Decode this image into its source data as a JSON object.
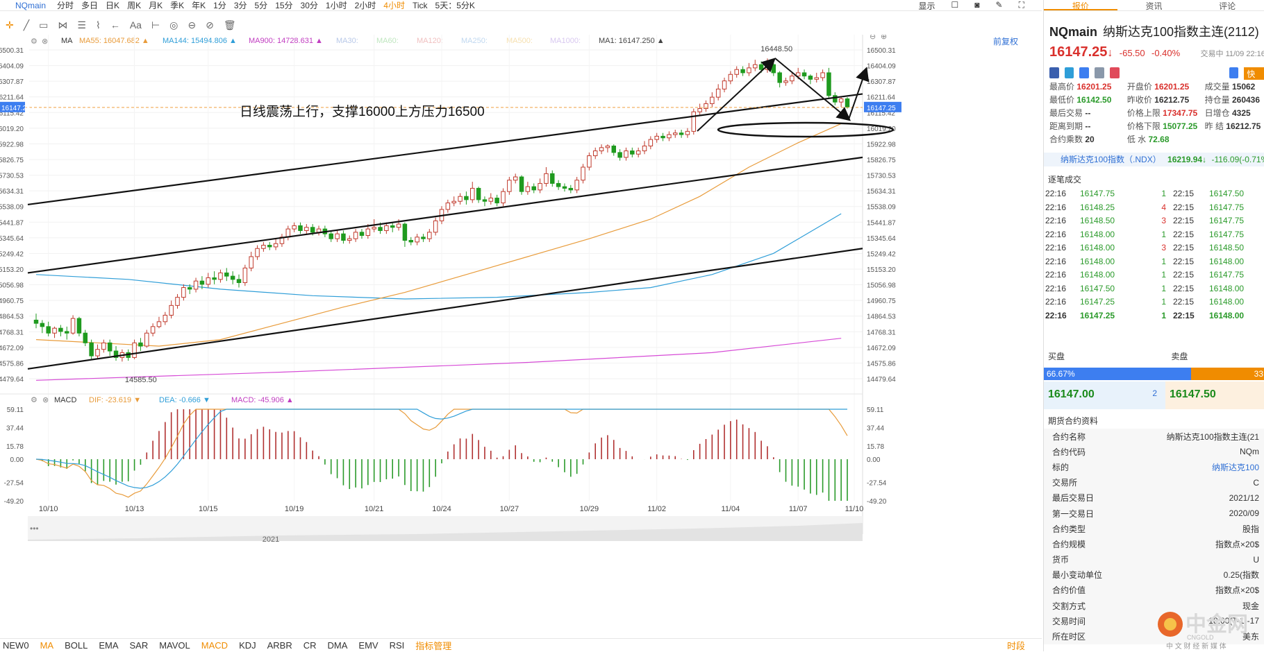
{
  "topbar": {
    "symbol": "NQmain",
    "periods": [
      "分时",
      "多日",
      "日K",
      "周K",
      "月K",
      "季K",
      "年K",
      "1分",
      "3分",
      "5分",
      "15分",
      "30分",
      "1小时",
      "2小时",
      "4小时",
      "Tick",
      "5天：5分K"
    ],
    "active_period": "4小时",
    "display_label": "显示"
  },
  "ma_legend": {
    "ma_label": "MA",
    "items": [
      {
        "text": "MA55: 16047.682 ▲",
        "color": "#e89b3a"
      },
      {
        "text": "MA144: 15494.806 ▲",
        "color": "#2f9ed8"
      },
      {
        "text": "MA900: 14728.631 ▲",
        "color": "#c03cc0"
      },
      {
        "text": "MA30:",
        "color": "#b8c8e8"
      },
      {
        "text": "MA60:",
        "color": "#bfe6bf"
      },
      {
        "text": "MA120:",
        "color": "#f0c0c0"
      },
      {
        "text": "MA250:",
        "color": "#c0d8f0"
      },
      {
        "text": "MA500:",
        "color": "#f6e0b0"
      },
      {
        "text": "MA1000:",
        "color": "#d8c8f0"
      },
      {
        "text": "MA1: 16147.250 ▲",
        "color": "#444444"
      }
    ],
    "fq": "前复权"
  },
  "macd_legend": {
    "label": "MACD",
    "dif": "DIF: -23.619 ▼",
    "dea": "DEA: -0.666 ▼",
    "macd": "MACD: -45.906 ▲"
  },
  "annotation": "日线震荡上行，支撑16000上方压力16500",
  "chart_data": {
    "type": "candlestick",
    "ylim": [
      14479.64,
      16500.31
    ],
    "y_ticks": [
      16500.31,
      16404.09,
      16307.87,
      16211.64,
      16115.42,
      16019.2,
      15922.98,
      15826.75,
      15730.53,
      15634.31,
      15538.09,
      15441.87,
      15345.64,
      15249.42,
      15153.2,
      15056.98,
      14960.75,
      14864.53,
      14768.31,
      14672.09,
      14575.86,
      14479.64
    ],
    "x_labels": [
      "10/10",
      "10/13",
      "10/15",
      "10/19",
      "10/21",
      "10/24",
      "10/27",
      "10/29",
      "11/02",
      "11/04",
      "11/07",
      "11/10"
    ],
    "current_price": "16147.25",
    "high_label": "16448.50",
    "low_label": "14585.50",
    "year_label": "2021",
    "candles": [
      [
        14840,
        14820,
        14880,
        14790
      ],
      [
        14820,
        14800,
        14840,
        14760
      ],
      [
        14800,
        14760,
        14830,
        14740
      ],
      [
        14760,
        14790,
        14800,
        14730
      ],
      [
        14790,
        14770,
        14810,
        14740
      ],
      [
        14770,
        14760,
        14800,
        14720
      ],
      [
        14760,
        14850,
        14870,
        14750
      ],
      [
        14850,
        14760,
        14860,
        14740
      ],
      [
        14760,
        14700,
        14780,
        14680
      ],
      [
        14700,
        14620,
        14720,
        14600
      ],
      [
        14620,
        14660,
        14690,
        14600
      ],
      [
        14660,
        14700,
        14720,
        14640
      ],
      [
        14700,
        14650,
        14720,
        14620
      ],
      [
        14650,
        14610,
        14680,
        14590
      ],
      [
        14610,
        14640,
        14660,
        14585
      ],
      [
        14640,
        14610,
        14660,
        14590
      ],
      [
        14610,
        14700,
        14720,
        14600
      ],
      [
        14700,
        14680,
        14730,
        14650
      ],
      [
        14680,
        14760,
        14780,
        14670
      ],
      [
        14760,
        14800,
        14820,
        14740
      ],
      [
        14800,
        14830,
        14860,
        14790
      ],
      [
        14830,
        14870,
        14890,
        14810
      ],
      [
        14870,
        14930,
        14960,
        14850
      ],
      [
        14930,
        14980,
        15000,
        14910
      ],
      [
        14980,
        15040,
        15060,
        14960
      ],
      [
        15040,
        15030,
        15060,
        15000
      ],
      [
        15030,
        15080,
        15100,
        15010
      ],
      [
        15080,
        15060,
        15110,
        15030
      ],
      [
        15060,
        15100,
        15130,
        15040
      ],
      [
        15100,
        15090,
        15140,
        15060
      ],
      [
        15090,
        15130,
        15150,
        15070
      ],
      [
        15130,
        15110,
        15160,
        15080
      ],
      [
        15110,
        15090,
        15140,
        15060
      ],
      [
        15090,
        15070,
        15120,
        15040
      ],
      [
        15070,
        15160,
        15180,
        15050
      ],
      [
        15160,
        15230,
        15260,
        15140
      ],
      [
        15230,
        15280,
        15300,
        15210
      ],
      [
        15280,
        15300,
        15320,
        15260
      ],
      [
        15300,
        15290,
        15320,
        15270
      ],
      [
        15290,
        15310,
        15340,
        15270
      ],
      [
        15310,
        15350,
        15370,
        15290
      ],
      [
        15350,
        15400,
        15420,
        15330
      ],
      [
        15400,
        15420,
        15440,
        15380
      ],
      [
        15420,
        15390,
        15440,
        15370
      ],
      [
        15390,
        15410,
        15430,
        15370
      ],
      [
        15410,
        15380,
        15430,
        15360
      ],
      [
        15380,
        15400,
        15420,
        15360
      ],
      [
        15400,
        15370,
        15420,
        15350
      ],
      [
        15370,
        15340,
        15390,
        15320
      ],
      [
        15340,
        15370,
        15390,
        15320
      ],
      [
        15370,
        15330,
        15390,
        15310
      ],
      [
        15330,
        15340,
        15360,
        15310
      ],
      [
        15340,
        15380,
        15400,
        15320
      ],
      [
        15380,
        15360,
        15400,
        15340
      ],
      [
        15360,
        15400,
        15430,
        15340
      ],
      [
        15400,
        15410,
        15460,
        15380
      ],
      [
        15410,
        15390,
        15440,
        15370
      ],
      [
        15390,
        15420,
        15440,
        15370
      ],
      [
        15420,
        15410,
        15440,
        15380
      ],
      [
        15410,
        15430,
        15460,
        15390
      ],
      [
        15430,
        15330,
        15440,
        15290
      ],
      [
        15330,
        15320,
        15350,
        15300
      ],
      [
        15320,
        15350,
        15370,
        15300
      ],
      [
        15350,
        15340,
        15370,
        15320
      ],
      [
        15340,
        15380,
        15400,
        15320
      ],
      [
        15380,
        15450,
        15470,
        15360
      ],
      [
        15450,
        15520,
        15540,
        15430
      ],
      [
        15520,
        15560,
        15580,
        15500
      ],
      [
        15560,
        15570,
        15600,
        15540
      ],
      [
        15570,
        15600,
        15620,
        15550
      ],
      [
        15600,
        15580,
        15630,
        15550
      ],
      [
        15580,
        15650,
        15690,
        15560
      ],
      [
        15650,
        15580,
        15660,
        15560
      ],
      [
        15580,
        15570,
        15600,
        15540
      ],
      [
        15570,
        15590,
        15620,
        15550
      ],
      [
        15590,
        15560,
        15610,
        15540
      ],
      [
        15560,
        15630,
        15650,
        15540
      ],
      [
        15630,
        15700,
        15720,
        15610
      ],
      [
        15700,
        15720,
        15740,
        15680
      ],
      [
        15720,
        15630,
        15730,
        15610
      ],
      [
        15630,
        15660,
        15690,
        15610
      ],
      [
        15660,
        15640,
        15680,
        15620
      ],
      [
        15640,
        15680,
        15710,
        15620
      ],
      [
        15680,
        15740,
        15780,
        15660
      ],
      [
        15740,
        15680,
        15760,
        15660
      ],
      [
        15680,
        15660,
        15700,
        15640
      ],
      [
        15660,
        15650,
        15680,
        15630
      ],
      [
        15650,
        15640,
        15670,
        15620
      ],
      [
        15640,
        15700,
        15720,
        15620
      ],
      [
        15700,
        15780,
        15800,
        15680
      ],
      [
        15780,
        15850,
        15870,
        15760
      ],
      [
        15850,
        15880,
        15900,
        15830
      ],
      [
        15880,
        15900,
        15920,
        15860
      ],
      [
        15900,
        15910,
        15920,
        15870
      ],
      [
        15910,
        15870,
        15920,
        15850
      ],
      [
        15870,
        15840,
        15890,
        15820
      ],
      [
        15840,
        15880,
        15900,
        15820
      ],
      [
        15880,
        15860,
        15900,
        15840
      ],
      [
        15860,
        15880,
        15900,
        15840
      ],
      [
        15880,
        15910,
        15940,
        15860
      ],
      [
        15910,
        15950,
        15970,
        15890
      ],
      [
        15950,
        15970,
        15990,
        15930
      ],
      [
        15970,
        15960,
        15990,
        15940
      ],
      [
        15960,
        15980,
        16000,
        15940
      ],
      [
        15980,
        15990,
        16010,
        15960
      ],
      [
        15990,
        15980,
        16010,
        15960
      ],
      [
        15980,
        16000,
        16020,
        15960
      ],
      [
        16000,
        16120,
        16140,
        15980
      ],
      [
        16120,
        16140,
        16170,
        16100
      ],
      [
        16140,
        16170,
        16190,
        16120
      ],
      [
        16170,
        16210,
        16240,
        16150
      ],
      [
        16210,
        16260,
        16290,
        16190
      ],
      [
        16260,
        16310,
        16330,
        16240
      ],
      [
        16310,
        16350,
        16370,
        16290
      ],
      [
        16350,
        16380,
        16400,
        16330
      ],
      [
        16380,
        16360,
        16400,
        16340
      ],
      [
        16360,
        16390,
        16420,
        16340
      ],
      [
        16390,
        16410,
        16440,
        16370
      ],
      [
        16410,
        16380,
        16430,
        16360
      ],
      [
        16380,
        16410,
        16448,
        16360
      ],
      [
        16410,
        16360,
        16420,
        16340
      ],
      [
        16360,
        16300,
        16370,
        16270
      ],
      [
        16300,
        16310,
        16330,
        16280
      ],
      [
        16310,
        16340,
        16360,
        16290
      ],
      [
        16340,
        16360,
        16390,
        16320
      ],
      [
        16360,
        16340,
        16380,
        16320
      ],
      [
        16340,
        16320,
        16350,
        16290
      ],
      [
        16320,
        16330,
        16360,
        16300
      ],
      [
        16330,
        16360,
        16380,
        16310
      ],
      [
        16360,
        16220,
        16390,
        16200
      ],
      [
        16220,
        16180,
        16240,
        16160
      ],
      [
        16180,
        16200,
        16210,
        16150
      ],
      [
        16200,
        16150,
        16210,
        16140
      ]
    ],
    "ma55": [
      [
        0,
        14720
      ],
      [
        10,
        14700
      ],
      [
        20,
        14680
      ],
      [
        30,
        14720
      ],
      [
        40,
        14820
      ],
      [
        50,
        14920
      ],
      [
        60,
        15010
      ],
      [
        70,
        15120
      ],
      [
        80,
        15230
      ],
      [
        90,
        15340
      ],
      [
        100,
        15460
      ],
      [
        108,
        15600
      ],
      [
        116,
        15780
      ],
      [
        124,
        15930
      ],
      [
        131,
        16047
      ]
    ],
    "ma144": [
      [
        0,
        15120
      ],
      [
        15,
        15090
      ],
      [
        30,
        15030
      ],
      [
        45,
        14990
      ],
      [
        60,
        14970
      ],
      [
        75,
        14980
      ],
      [
        90,
        15010
      ],
      [
        100,
        15040
      ],
      [
        110,
        15120
      ],
      [
        120,
        15250
      ],
      [
        131,
        15494
      ]
    ],
    "ma900": [
      [
        0,
        14470
      ],
      [
        40,
        14520
      ],
      [
        80,
        14580
      ],
      [
        110,
        14640
      ],
      [
        131,
        14728
      ]
    ],
    "trendlines": [
      {
        "from": [
          0,
          15550
        ],
        "to": [
          132,
          16230
        ]
      },
      {
        "from": [
          0,
          15130
        ],
        "to": [
          132,
          15840
        ]
      },
      {
        "from": [
          0,
          14540
        ],
        "to": [
          132,
          15280
        ]
      }
    ],
    "macd_axis": {
      "ylim": [
        -49.2,
        59.11
      ],
      "ticks": [
        59.11,
        37.44,
        15.78,
        0.0,
        -27.54,
        -49.2
      ]
    }
  },
  "bottombar": {
    "items": [
      "NEW0",
      "MA",
      "BOLL",
      "EMA",
      "SAR",
      "MAVOL",
      "MACD",
      "KDJ",
      "ARBR",
      "CR",
      "DMA",
      "EMV",
      "RSI",
      "指标管理"
    ],
    "right": "时段"
  },
  "right_panel": {
    "tabs": [
      "报价",
      "资讯",
      "评论"
    ],
    "symbol": "NQmain",
    "name": "纳斯达克100指数主连(2112)",
    "price": "16147.25",
    "arrow": "↓",
    "change": "-65.50",
    "change_pct": "-0.40%",
    "status": "交易中 11/09 22:16",
    "quick": "快捷",
    "quotes": [
      [
        {
          "k": "最高价",
          "v": "16201.25",
          "c": "up"
        },
        {
          "k": "开盘价",
          "v": "16201.25",
          "c": "up"
        },
        {
          "k": "成交量",
          "v": "15062",
          "c": ""
        }
      ],
      [
        {
          "k": "最低价",
          "v": "16142.50",
          "c": "dn"
        },
        {
          "k": "昨收价",
          "v": "16212.75",
          "c": ""
        },
        {
          "k": "持仓量",
          "v": "260436",
          "c": ""
        }
      ],
      [
        {
          "k": "最后交易",
          "v": "--",
          "c": ""
        },
        {
          "k": "价格上限",
          "v": "17347.75",
          "c": "up"
        },
        {
          "k": "日增仓",
          "v": "4325",
          "c": ""
        }
      ],
      [
        {
          "k": "距离到期",
          "v": "--",
          "c": ""
        },
        {
          "k": "价格下限",
          "v": "15077.25",
          "c": "dn"
        },
        {
          "k": "昨 结",
          "v": "16212.75",
          "c": ""
        }
      ],
      [
        {
          "k": "合约乘数",
          "v": "20",
          "c": ""
        },
        {
          "k": "低 水",
          "v": "72.68",
          "c": "dn"
        },
        {
          "k": "",
          "v": "",
          "c": ""
        }
      ]
    ],
    "index_name": "纳斯达克100指数（.NDX）",
    "index_price": "16219.94↓",
    "index_change": "-116.09(-0.71%)",
    "ticks_title": "逐笔成交",
    "ticks": [
      [
        "22:16",
        "16147.75",
        "1",
        "22:15",
        "16147.50"
      ],
      [
        "22:16",
        "16148.25",
        "4",
        "22:15",
        "16147.75"
      ],
      [
        "22:16",
        "16148.50",
        "3",
        "22:15",
        "16147.75"
      ],
      [
        "22:16",
        "16148.00",
        "1",
        "22:15",
        "16147.75"
      ],
      [
        "22:16",
        "16148.00",
        "3",
        "22:15",
        "16148.50"
      ],
      [
        "22:16",
        "16148.00",
        "1",
        "22:15",
        "16148.00"
      ],
      [
        "22:16",
        "16148.00",
        "1",
        "22:15",
        "16147.75"
      ],
      [
        "22:16",
        "16147.50",
        "1",
        "22:15",
        "16148.00"
      ],
      [
        "22:16",
        "16147.25",
        "1",
        "22:15",
        "16148.00"
      ],
      [
        "22:16",
        "16147.25",
        "1",
        "22:15",
        "16148.00"
      ]
    ],
    "buy_label": "买盘",
    "sell_label": "卖盘",
    "buy_pct": "66.67%",
    "sell_pct": "33",
    "bid": "16147.00",
    "bid_size": "2",
    "ask": "16147.50",
    "info_title": "期货合约资料",
    "info": [
      [
        "合约名称",
        "纳斯达克100指数主连(21"
      ],
      [
        "合约代码",
        "NQm"
      ],
      [
        "标的",
        "纳斯达克100"
      ],
      [
        "交易所",
        "C"
      ],
      [
        "最后交易日",
        "2021/12"
      ],
      [
        "第一交易日",
        "2020/09"
      ],
      [
        "合约类型",
        "股指"
      ],
      [
        "合约规模",
        "指数点×20$"
      ],
      [
        "货币",
        "U"
      ],
      [
        "最小变动单位",
        "0.25(指数"
      ],
      [
        "合约价值",
        "指数点×20$"
      ],
      [
        "交割方式",
        "现金"
      ],
      [
        "交易时间",
        "18:00(T-1)-17"
      ],
      [
        "所在时区",
        "美东"
      ]
    ],
    "logo_text": "中金网",
    "logo_sub": "CNGOLD",
    "logo_slogan": "中 文 财 经 新 媒 体"
  }
}
